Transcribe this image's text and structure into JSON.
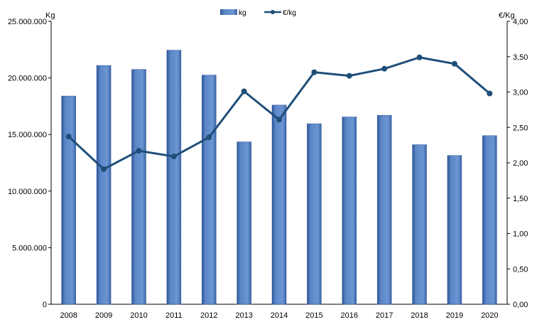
{
  "chart_data": {
    "type": "bar",
    "categories": [
      "2008",
      "2009",
      "2010",
      "2011",
      "2012",
      "2013",
      "2014",
      "2015",
      "2016",
      "2017",
      "2018",
      "2019",
      "2020"
    ],
    "series": [
      {
        "name": "kg",
        "type": "bar",
        "axis": "left",
        "values": [
          18400000,
          21100000,
          20750000,
          22450000,
          20250000,
          14350000,
          17600000,
          15950000,
          16550000,
          16700000,
          14100000,
          13150000,
          14900000
        ]
      },
      {
        "name": "€/kg",
        "type": "line",
        "axis": "right",
        "values": [
          2.37,
          1.91,
          2.17,
          2.09,
          2.36,
          3.01,
          2.61,
          3.28,
          3.23,
          3.33,
          3.49,
          3.4,
          2.98
        ]
      }
    ],
    "left_axis": {
      "unit_label": "Kg",
      "ylim": [
        0,
        25000000
      ],
      "tick_labels": [
        "0",
        "5.000.000",
        "10.000.000",
        "15.000.000",
        "20.000.000",
        "25.000.000"
      ]
    },
    "right_axis": {
      "unit_label": "€/Kg",
      "ylim": [
        0,
        4
      ],
      "tick_labels": [
        "0,00",
        "0,50",
        "1,00",
        "1,50",
        "2,00",
        "2,50",
        "3,00",
        "3,50",
        "4,00"
      ]
    },
    "legend_position": "top-center",
    "grid": false,
    "colors": {
      "bar": "#5b87c8",
      "bar_dark": "#2f5597",
      "line": "#1f4e79"
    }
  }
}
